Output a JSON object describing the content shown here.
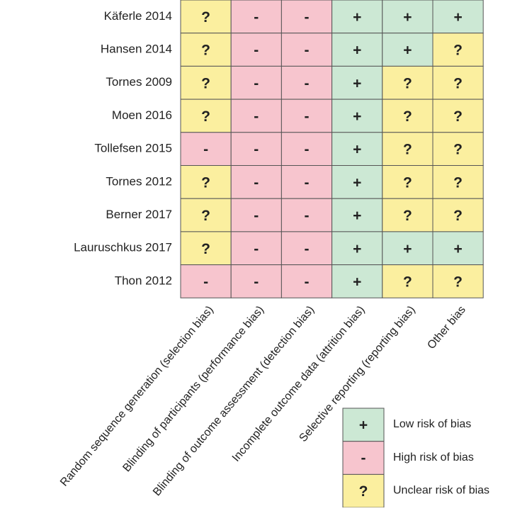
{
  "table": {
    "columns": [
      "Random sequence generation (selection bias)",
      "Blinding of participants (performance bias)",
      "Blinding of outcome assessment (detection bias)",
      "Incomplete outcome data (attrition bias)",
      "Selective reporting (reporting bias)",
      "Other bias"
    ],
    "rows": [
      {
        "study": "Käferle 2014",
        "cells": [
          "?",
          "-",
          "-",
          "+",
          "+",
          "+"
        ]
      },
      {
        "study": "Hansen 2014",
        "cells": [
          "?",
          "-",
          "-",
          "+",
          "+",
          "?"
        ]
      },
      {
        "study": "Tornes 2009",
        "cells": [
          "?",
          "-",
          "-",
          "+",
          "?",
          "?"
        ]
      },
      {
        "study": "Moen 2016",
        "cells": [
          "?",
          "-",
          "-",
          "+",
          "?",
          "?"
        ]
      },
      {
        "study": "Tollefsen 2015",
        "cells": [
          "-",
          "-",
          "-",
          "+",
          "?",
          "?"
        ]
      },
      {
        "study": "Tornes 2012",
        "cells": [
          "?",
          "-",
          "-",
          "+",
          "?",
          "?"
        ]
      },
      {
        "study": "Berner 2017",
        "cells": [
          "?",
          "-",
          "-",
          "+",
          "?",
          "?"
        ]
      },
      {
        "study": "Lauruschkus 2017",
        "cells": [
          "?",
          "-",
          "-",
          "+",
          "+",
          "+"
        ]
      },
      {
        "study": "Thon 2012",
        "cells": [
          "-",
          "-",
          "-",
          "+",
          "?",
          "?"
        ]
      }
    ]
  },
  "legend": [
    {
      "symbol": "+",
      "label": "Low risk of bias",
      "color": "#cce8d4",
      "text_color": "#1e7a32"
    },
    {
      "symbol": "-",
      "label": "High risk of bias",
      "color": "#f7c5ce",
      "text_color": "#c0282b"
    },
    {
      "symbol": "?",
      "label": "Unclear risk of bias",
      "color": "#fbef9f",
      "text_color": "#b07a26"
    }
  ]
}
